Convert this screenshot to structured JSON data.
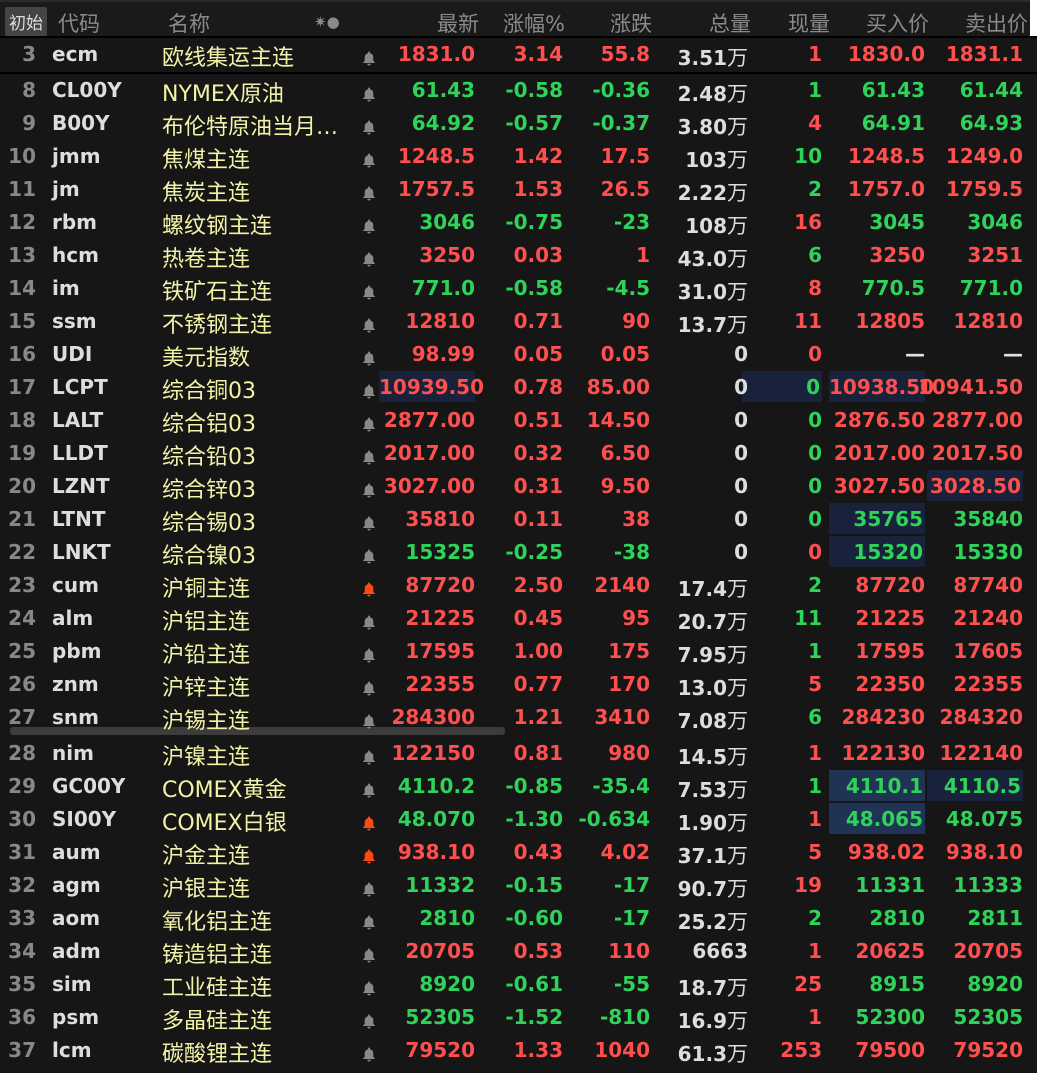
{
  "header": {
    "init": "初始",
    "code": "代码",
    "name": "名称",
    "icons": "✷●",
    "last": "最新",
    "pct": "涨幅%",
    "chg": "涨跌",
    "vol": "总量",
    "cur": "现量",
    "bid": "买入价",
    "ask": "卖出价"
  },
  "colors": {
    "up": "#ff4f4f",
    "down": "#2fd35a",
    "name": "#f3f3a8",
    "bell_active": "#ff4a14",
    "bell": "#888888"
  },
  "rows": [
    {
      "n": "3",
      "code": "ecm",
      "name": "欧线集运主连",
      "last": "1831.0",
      "pct": "3.14",
      "chg": "55.8",
      "vol": "3.51",
      "unit": "万",
      "cur": "1",
      "bid": "1830.0",
      "ask": "1831.1",
      "c": "up",
      "cc": "up",
      "bell": false,
      "hl": {}
    },
    {
      "n": "8",
      "code": "CL00Y",
      "name": "NYMEX原油",
      "last": "61.43",
      "pct": "-0.58",
      "chg": "-0.36",
      "vol": "2.48",
      "unit": "万",
      "cur": "1",
      "bid": "61.43",
      "ask": "61.44",
      "c": "dn",
      "cc": "dn",
      "bell": false,
      "hl": {}
    },
    {
      "n": "9",
      "code": "B00Y",
      "name": "布伦特原油当月…",
      "last": "64.92",
      "pct": "-0.57",
      "chg": "-0.37",
      "vol": "3.80",
      "unit": "万",
      "cur": "4",
      "bid": "64.91",
      "ask": "64.93",
      "c": "dn",
      "cc": "up",
      "bell": false,
      "hl": {}
    },
    {
      "n": "10",
      "code": "jmm",
      "name": "焦煤主连",
      "last": "1248.5",
      "pct": "1.42",
      "chg": "17.5",
      "vol": "103",
      "unit": "万",
      "cur": "10",
      "bid": "1248.5",
      "ask": "1249.0",
      "c": "up",
      "cc": "dn",
      "bell": false,
      "hl": {}
    },
    {
      "n": "11",
      "code": "jm",
      "name": "焦炭主连",
      "last": "1757.5",
      "pct": "1.53",
      "chg": "26.5",
      "vol": "2.22",
      "unit": "万",
      "cur": "2",
      "bid": "1757.0",
      "ask": "1759.5",
      "c": "up",
      "cc": "dn",
      "bell": false,
      "hl": {}
    },
    {
      "n": "12",
      "code": "rbm",
      "name": "螺纹钢主连",
      "last": "3046",
      "pct": "-0.75",
      "chg": "-23",
      "vol": "108",
      "unit": "万",
      "cur": "16",
      "bid": "3045",
      "ask": "3046",
      "c": "dn",
      "cc": "up",
      "bell": false,
      "hl": {}
    },
    {
      "n": "13",
      "code": "hcm",
      "name": "热卷主连",
      "last": "3250",
      "pct": "0.03",
      "chg": "1",
      "vol": "43.0",
      "unit": "万",
      "cur": "6",
      "bid": "3250",
      "ask": "3251",
      "c": "up",
      "cc": "dn",
      "bell": false,
      "hl": {}
    },
    {
      "n": "14",
      "code": "im",
      "name": "铁矿石主连",
      "last": "771.0",
      "pct": "-0.58",
      "chg": "-4.5",
      "vol": "31.0",
      "unit": "万",
      "cur": "8",
      "bid": "770.5",
      "ask": "771.0",
      "c": "dn",
      "cc": "up",
      "bell": false,
      "hl": {}
    },
    {
      "n": "15",
      "code": "ssm",
      "name": "不锈钢主连",
      "last": "12810",
      "pct": "0.71",
      "chg": "90",
      "vol": "13.7",
      "unit": "万",
      "cur": "11",
      "bid": "12805",
      "ask": "12810",
      "c": "up",
      "cc": "up",
      "bell": false,
      "hl": {}
    },
    {
      "n": "16",
      "code": "UDI",
      "name": "美元指数",
      "last": "98.99",
      "pct": "0.05",
      "chg": "0.05",
      "vol": "0",
      "unit": "",
      "cur": "0",
      "bid": "—",
      "ask": "—",
      "c": "up",
      "cc": "up",
      "bc": "wh",
      "bell": false,
      "hl": {}
    },
    {
      "n": "17",
      "code": "LCPT",
      "name": "综合铜03",
      "last": "10939.50",
      "pct": "0.78",
      "chg": "85.00",
      "vol": "0",
      "unit": "",
      "cur": "0",
      "bid": "10938.50",
      "ask": "10941.50",
      "c": "up",
      "cc": "dn",
      "bell": false,
      "hl": {
        "last": 1,
        "cur": 1,
        "bid": 1
      }
    },
    {
      "n": "18",
      "code": "LALT",
      "name": "综合铝03",
      "last": "2877.00",
      "pct": "0.51",
      "chg": "14.50",
      "vol": "0",
      "unit": "",
      "cur": "0",
      "bid": "2876.50",
      "ask": "2877.00",
      "c": "up",
      "cc": "dn",
      "bell": false,
      "hl": {}
    },
    {
      "n": "19",
      "code": "LLDT",
      "name": "综合铅03",
      "last": "2017.00",
      "pct": "0.32",
      "chg": "6.50",
      "vol": "0",
      "unit": "",
      "cur": "0",
      "bid": "2017.00",
      "ask": "2017.50",
      "c": "up",
      "cc": "dn",
      "bell": false,
      "hl": {}
    },
    {
      "n": "20",
      "code": "LZNT",
      "name": "综合锌03",
      "last": "3027.00",
      "pct": "0.31",
      "chg": "9.50",
      "vol": "0",
      "unit": "",
      "cur": "0",
      "bid": "3027.50",
      "ask": "3028.50",
      "c": "up",
      "cc": "dn",
      "bell": false,
      "hl": {
        "ask": 1
      }
    },
    {
      "n": "21",
      "code": "LTNT",
      "name": "综合锡03",
      "last": "35810",
      "pct": "0.11",
      "chg": "38",
      "vol": "0",
      "unit": "",
      "cur": "0",
      "bid": "35765",
      "ask": "35840",
      "c": "up",
      "cc": "dn",
      "bc": "dn",
      "bell": false,
      "hl": {
        "bid": 1
      }
    },
    {
      "n": "22",
      "code": "LNKT",
      "name": "综合镍03",
      "last": "15325",
      "pct": "-0.25",
      "chg": "-38",
      "vol": "0",
      "unit": "",
      "cur": "0",
      "bid": "15320",
      "ask": "15330",
      "c": "dn",
      "cc": "up",
      "bell": false,
      "hl": {
        "bid": 1
      }
    },
    {
      "n": "23",
      "code": "cum",
      "name": "沪铜主连",
      "last": "87720",
      "pct": "2.50",
      "chg": "2140",
      "vol": "17.4",
      "unit": "万",
      "cur": "2",
      "bid": "87720",
      "ask": "87740",
      "c": "up",
      "cc": "dn",
      "bell": true,
      "hl": {}
    },
    {
      "n": "24",
      "code": "alm",
      "name": "沪铝主连",
      "last": "21225",
      "pct": "0.45",
      "chg": "95",
      "vol": "20.7",
      "unit": "万",
      "cur": "11",
      "bid": "21225",
      "ask": "21240",
      "c": "up",
      "cc": "dn",
      "bell": false,
      "hl": {}
    },
    {
      "n": "25",
      "code": "pbm",
      "name": "沪铅主连",
      "last": "17595",
      "pct": "1.00",
      "chg": "175",
      "vol": "7.95",
      "unit": "万",
      "cur": "1",
      "bid": "17595",
      "ask": "17605",
      "c": "up",
      "cc": "dn",
      "bell": false,
      "hl": {}
    },
    {
      "n": "26",
      "code": "znm",
      "name": "沪锌主连",
      "last": "22355",
      "pct": "0.77",
      "chg": "170",
      "vol": "13.0",
      "unit": "万",
      "cur": "5",
      "bid": "22350",
      "ask": "22355",
      "c": "up",
      "cc": "up",
      "bell": false,
      "hl": {}
    },
    {
      "n": "27",
      "code": "snm",
      "name": "沪锡主连",
      "last": "284300",
      "pct": "1.21",
      "chg": "3410",
      "vol": "7.08",
      "unit": "万",
      "cur": "6",
      "bid": "284230",
      "ask": "284320",
      "c": "up",
      "cc": "dn",
      "bell": false,
      "hl": {}
    },
    {
      "n": "28",
      "code": "nim",
      "name": "沪镍主连",
      "last": "122150",
      "pct": "0.81",
      "chg": "980",
      "vol": "14.5",
      "unit": "万",
      "cur": "1",
      "bid": "122130",
      "ask": "122140",
      "c": "up",
      "cc": "up",
      "bell": false,
      "hl": {}
    },
    {
      "n": "29",
      "code": "GC00Y",
      "name": "COMEX黄金",
      "last": "4110.2",
      "pct": "-0.85",
      "chg": "-35.4",
      "vol": "7.53",
      "unit": "万",
      "cur": "1",
      "bid": "4110.1",
      "ask": "4110.5",
      "c": "dn",
      "cc": "dn",
      "bell": false,
      "hl": {
        "bid": 2,
        "ask": 1
      }
    },
    {
      "n": "30",
      "code": "SI00Y",
      "name": "COMEX白银",
      "last": "48.070",
      "pct": "-1.30",
      "chg": "-0.634",
      "vol": "1.90",
      "unit": "万",
      "cur": "1",
      "bid": "48.065",
      "ask": "48.075",
      "c": "dn",
      "cc": "up",
      "bell": true,
      "hl": {
        "bid": 2
      }
    },
    {
      "n": "31",
      "code": "aum",
      "name": "沪金主连",
      "last": "938.10",
      "pct": "0.43",
      "chg": "4.02",
      "vol": "37.1",
      "unit": "万",
      "cur": "5",
      "bid": "938.02",
      "ask": "938.10",
      "c": "up",
      "cc": "up",
      "bell": true,
      "hl": {}
    },
    {
      "n": "32",
      "code": "agm",
      "name": "沪银主连",
      "last": "11332",
      "pct": "-0.15",
      "chg": "-17",
      "vol": "90.7",
      "unit": "万",
      "cur": "19",
      "bid": "11331",
      "ask": "11333",
      "c": "dn",
      "cc": "up",
      "bell": false,
      "hl": {}
    },
    {
      "n": "33",
      "code": "aom",
      "name": "氧化铝主连",
      "last": "2810",
      "pct": "-0.60",
      "chg": "-17",
      "vol": "25.2",
      "unit": "万",
      "cur": "2",
      "bid": "2810",
      "ask": "2811",
      "c": "dn",
      "cc": "dn",
      "bell": false,
      "hl": {}
    },
    {
      "n": "34",
      "code": "adm",
      "name": "铸造铝主连",
      "last": "20705",
      "pct": "0.53",
      "chg": "110",
      "vol": "6663",
      "unit": "",
      "cur": "1",
      "bid": "20625",
      "ask": "20705",
      "c": "up",
      "cc": "up",
      "bell": false,
      "hl": {}
    },
    {
      "n": "35",
      "code": "sim",
      "name": "工业硅主连",
      "last": "8920",
      "pct": "-0.61",
      "chg": "-55",
      "vol": "18.7",
      "unit": "万",
      "cur": "25",
      "bid": "8915",
      "ask": "8920",
      "c": "dn",
      "cc": "up",
      "bell": false,
      "hl": {}
    },
    {
      "n": "36",
      "code": "psm",
      "name": "多晶硅主连",
      "last": "52305",
      "pct": "-1.52",
      "chg": "-810",
      "vol": "16.9",
      "unit": "万",
      "cur": "1",
      "bid": "52300",
      "ask": "52305",
      "c": "dn",
      "cc": "up",
      "bell": false,
      "hl": {}
    },
    {
      "n": "37",
      "code": "lcm",
      "name": "碳酸锂主连",
      "last": "79520",
      "pct": "1.33",
      "chg": "1040",
      "vol": "61.3",
      "unit": "万",
      "cur": "253",
      "bid": "79500",
      "ask": "79520",
      "c": "up",
      "cc": "up",
      "bell": false,
      "hl": {}
    }
  ]
}
